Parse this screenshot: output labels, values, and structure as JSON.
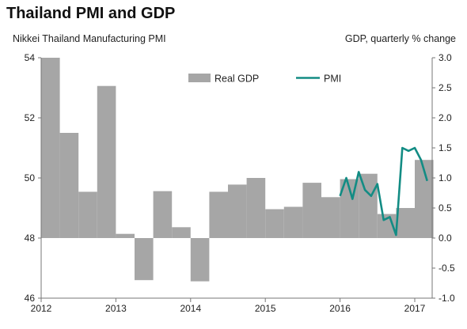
{
  "header": {
    "title": "Thailand PMI and GDP",
    "left_axis_caption": "Nikkei Thailand  Manufacturing PMI",
    "right_axis_caption": "GDP, quarterly % change"
  },
  "colors": {
    "gdp_bar": "#a6a6a6",
    "pmi_line": "#138c84",
    "axis": "#777777"
  },
  "chart_data": {
    "type": "bar",
    "x_ticks": [
      "2012",
      "2013",
      "2014",
      "2015",
      "2016",
      "2017"
    ],
    "left_axis": {
      "label": "Nikkei Thailand  Manufacturing PMI",
      "ylim": [
        46,
        54
      ],
      "ticks": [
        "46",
        "48",
        "50",
        "52",
        "54"
      ]
    },
    "right_axis": {
      "label": "GDP, quarterly % change",
      "ylim": [
        -1.0,
        3.0
      ],
      "ticks": [
        "-1.0",
        "-0.5",
        "0.0",
        "0.5",
        "1.0",
        "1.5",
        "2.0",
        "2.5",
        "3.0"
      ]
    },
    "legend": {
      "position": "top-center",
      "entries": [
        "Real GDP",
        "PMI"
      ]
    },
    "series": [
      {
        "name": "Real GDP",
        "type": "bar",
        "axis": "right",
        "x": [
          "2012 Q1",
          "2012 Q2",
          "2012 Q3",
          "2012 Q4",
          "2013 Q1",
          "2013 Q2",
          "2013 Q3",
          "2013 Q4",
          "2014 Q1",
          "2014 Q2",
          "2014 Q3",
          "2014 Q4",
          "2015 Q1",
          "2015 Q2",
          "2015 Q3",
          "2015 Q4",
          "2016 Q1",
          "2016 Q2",
          "2016 Q3",
          "2016 Q4",
          "2017 Q1"
        ],
        "values": [
          3.0,
          1.75,
          0.77,
          2.53,
          0.07,
          -0.7,
          0.78,
          0.18,
          -0.72,
          0.77,
          0.89,
          1.0,
          0.48,
          0.52,
          0.92,
          0.68,
          0.98,
          1.07,
          0.4,
          0.5,
          1.3
        ]
      },
      {
        "name": "PMI",
        "type": "line",
        "axis": "left",
        "x": [
          "2016-01",
          "2016-02",
          "2016-03",
          "2016-04",
          "2016-05",
          "2016-06",
          "2016-07",
          "2016-08",
          "2016-09",
          "2016-10",
          "2016-11",
          "2016-12",
          "2017-01",
          "2017-02",
          "2017-03"
        ],
        "values": [
          49.4,
          50.0,
          49.3,
          50.2,
          49.6,
          49.4,
          49.8,
          48.6,
          48.7,
          48.1,
          51.0,
          50.9,
          51.0,
          50.6,
          49.9
        ]
      }
    ]
  }
}
